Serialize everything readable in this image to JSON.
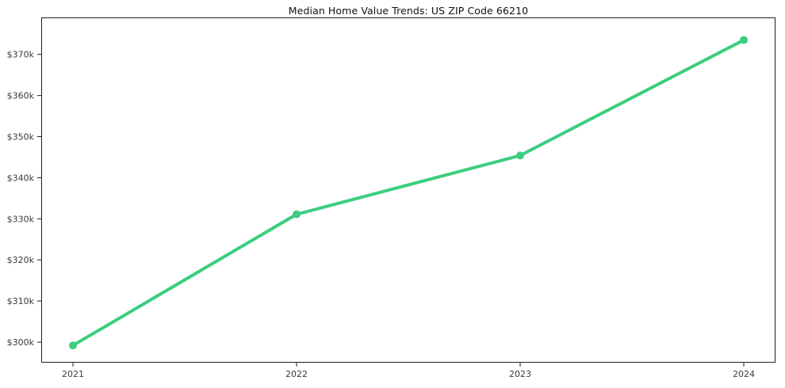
{
  "figure": {
    "title": "Median Home Value Trends: US ZIP Code 66210"
  },
  "colors": {
    "line": "#3bce7e",
    "axis": "#1f1f1f",
    "tick_label": "#3a3a3a",
    "title": "#111111",
    "background": "#ffffff"
  },
  "chart_data": {
    "type": "line",
    "title": "Median Home Value Trends: US ZIP Code 66210",
    "categories": [
      "2021",
      "2022",
      "2023",
      "2024"
    ],
    "x": [
      2021,
      2022,
      2023,
      2024
    ],
    "values": [
      299200,
      331100,
      345400,
      373500
    ],
    "y_tick_values": [
      300000,
      310000,
      320000,
      330000,
      340000,
      350000,
      360000,
      370000
    ],
    "y_tick_labels": [
      "$300k",
      "$310k",
      "$320k",
      "$330k",
      "$340k",
      "$350k",
      "$360k",
      "$370k"
    ],
    "ylim": [
      295000,
      379000
    ],
    "xlabel": "",
    "ylabel": "",
    "grid": false,
    "legend": false,
    "marker": "circle",
    "line_width": 4,
    "marker_radius": 5
  }
}
